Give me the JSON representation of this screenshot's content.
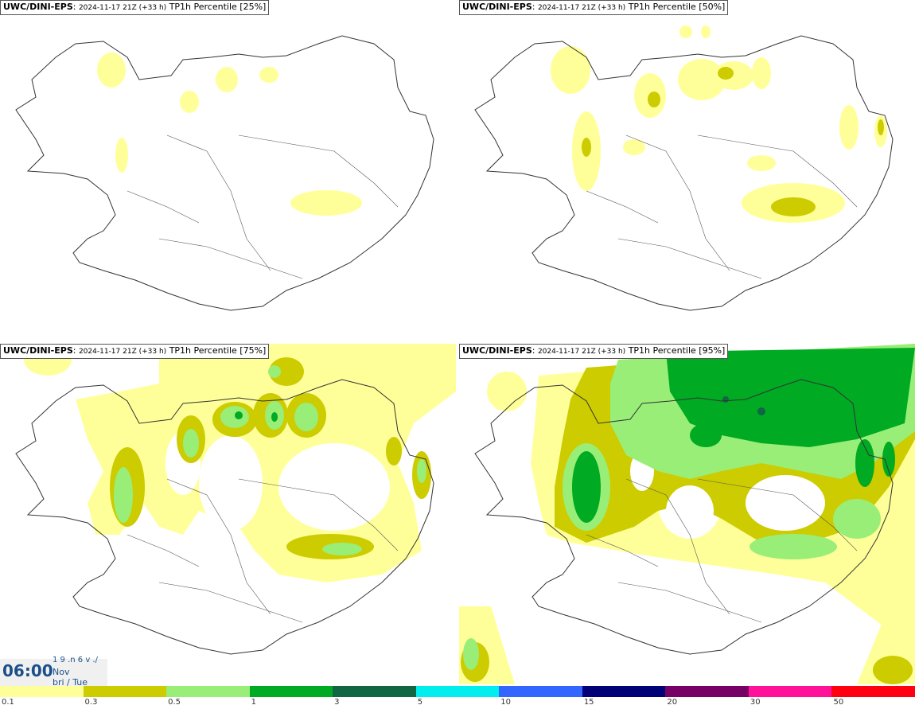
{
  "panels": [
    {
      "model": "UWC/DINI-EPS",
      "run": "2024-11-17 21Z (+33 h)",
      "param": "TP1h Percentile",
      "pct": "[25%]"
    },
    {
      "model": "UWC/DINI-EPS",
      "run": "2024-11-17 21Z (+33 h)",
      "param": "TP1h Percentile",
      "pct": "[50%]"
    },
    {
      "model": "UWC/DINI-EPS",
      "run": "2024-11-17 21Z (+33 h)",
      "param": "TP1h Percentile",
      "pct": "[75%]"
    },
    {
      "model": "UWC/DINI-EPS",
      "run": "2024-11-17 21Z (+33 h)",
      "param": "TP1h Percentile",
      "pct": "[95%]"
    }
  ],
  "time": {
    "hour": "06:00",
    "line1": "1 9 .n 6 v ./",
    "line2": "Nov",
    "line3": "bri / Tue"
  },
  "legend": {
    "colors": [
      "#ffff99",
      "#cccc00",
      "#99ee77",
      "#00aa22",
      "#116644",
      "#00eeee",
      "#3366ff",
      "#000077",
      "#770066",
      "#ff1199",
      "#ff0011"
    ],
    "labels": [
      "0.1",
      "0.3",
      "0.5",
      "1",
      "3",
      "5",
      "10",
      "15",
      "20",
      "30",
      "50"
    ]
  },
  "colors": {
    "light": "#ffff99",
    "olive": "#cccc00",
    "lightgreen": "#99ee77",
    "green": "#00aa22",
    "darkgreen": "#116644",
    "outline": "#333333"
  }
}
